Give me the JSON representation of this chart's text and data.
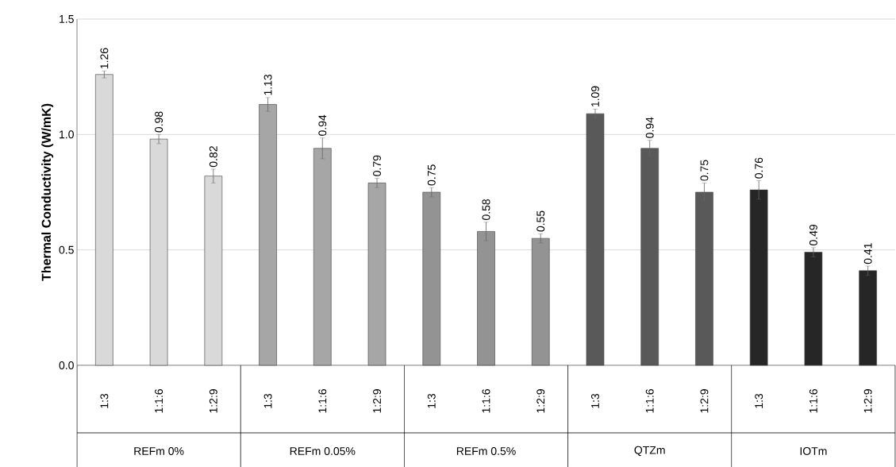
{
  "chart_data": {
    "type": "bar",
    "ylabel": "Thermal Conductivity (W/mK)",
    "categories": [
      "1:3",
      "1:1:6",
      "1:2:9",
      "1:3",
      "1:1:6",
      "1:2:9",
      "1:3",
      "1:1:6",
      "1:2:9",
      "1:3",
      "1:1:6",
      "1:2:9",
      "1:3",
      "1:1:6",
      "1:2:9"
    ],
    "values": [
      1.26,
      0.98,
      0.82,
      1.13,
      0.94,
      0.79,
      0.75,
      0.58,
      0.55,
      1.09,
      0.94,
      0.75,
      0.76,
      0.49,
      0.41
    ],
    "errors": [
      0.015,
      0.02,
      0.03,
      0.03,
      0.045,
      0.02,
      0.02,
      0.04,
      0.02,
      0.02,
      0.035,
      0.04,
      0.04,
      0.02,
      0.02
    ],
    "colors": [
      "#d9d9d9",
      "#d9d9d9",
      "#d9d9d9",
      "#a6a6a6",
      "#a6a6a6",
      "#a6a6a6",
      "#939393",
      "#939393",
      "#939393",
      "#595959",
      "#595959",
      "#595959",
      "#262626",
      "#262626",
      "#262626"
    ],
    "annotations": [
      "REFm 0%",
      "REFm 0.05%",
      "REFm 0.5%",
      "QTZm",
      "IOTm"
    ],
    "ylim": [
      0,
      1.5
    ],
    "yticks": [
      {
        "value": 0,
        "label": "0.0"
      },
      {
        "value": 0.5,
        "label": "0.5"
      },
      {
        "value": 1,
        "label": "1.0"
      },
      {
        "value": 1.5,
        "label": "1.5"
      }
    ],
    "grid": "y",
    "data_labels": true
  }
}
